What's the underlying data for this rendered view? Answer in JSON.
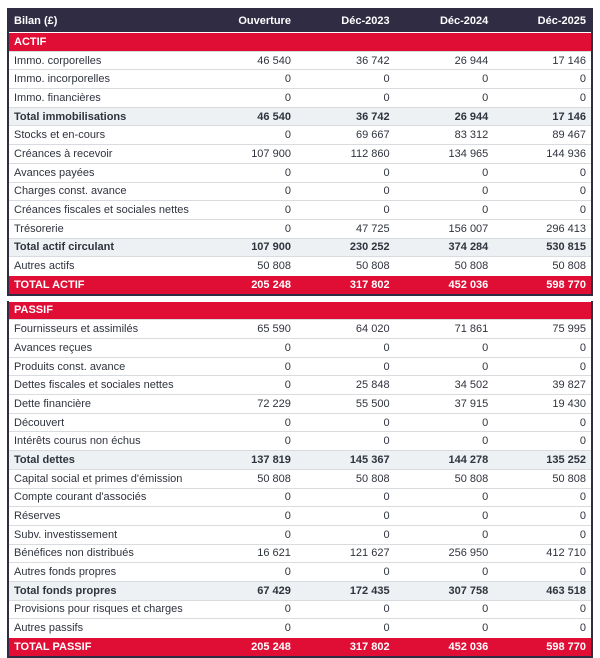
{
  "table": {
    "title": "Bilan (£)",
    "columns": [
      "Ouverture",
      "Déc-2023",
      "Déc-2024",
      "Déc-2025"
    ]
  },
  "colors": {
    "header_bg": "#2f2c44",
    "accent_red": "#e00d35",
    "subtotal_bg": "#edf1f3",
    "row_border": "#d8dcdf",
    "text": "#2f333d"
  },
  "actif": {
    "rows": [
      {
        "type": "section",
        "label": "ACTIF"
      },
      {
        "type": "data",
        "label": "Immo. corporelles",
        "values": [
          "46 540",
          "36 742",
          "26 944",
          "17 146"
        ]
      },
      {
        "type": "data",
        "label": "Immo. incorporelles",
        "values": [
          "0",
          "0",
          "0",
          "0"
        ]
      },
      {
        "type": "data",
        "label": "Immo. financières",
        "values": [
          "0",
          "0",
          "0",
          "0"
        ]
      },
      {
        "type": "subtotal",
        "label": "Total immobilisations",
        "values": [
          "46 540",
          "36 742",
          "26 944",
          "17 146"
        ]
      },
      {
        "type": "data",
        "label": "Stocks et en-cours",
        "values": [
          "0",
          "69 667",
          "83 312",
          "89 467"
        ]
      },
      {
        "type": "data",
        "label": "Créances à recevoir",
        "values": [
          "107 900",
          "112 860",
          "134 965",
          "144 936"
        ]
      },
      {
        "type": "data",
        "label": "Avances payées",
        "values": [
          "0",
          "0",
          "0",
          "0"
        ]
      },
      {
        "type": "data",
        "label": "Charges const. avance",
        "values": [
          "0",
          "0",
          "0",
          "0"
        ]
      },
      {
        "type": "data",
        "label": "Créances fiscales et sociales nettes",
        "values": [
          "0",
          "0",
          "0",
          "0"
        ]
      },
      {
        "type": "data",
        "label": "Trésorerie",
        "values": [
          "0",
          "47 725",
          "156 007",
          "296 413"
        ]
      },
      {
        "type": "subtotal",
        "label": "Total actif circulant",
        "values": [
          "107 900",
          "230 252",
          "374 284",
          "530 815"
        ]
      },
      {
        "type": "data",
        "label": "Autres actifs",
        "values": [
          "50 808",
          "50 808",
          "50 808",
          "50 808"
        ]
      },
      {
        "type": "grand",
        "label": "TOTAL ACTIF",
        "values": [
          "205 248",
          "317 802",
          "452 036",
          "598 770"
        ]
      }
    ]
  },
  "passif": {
    "rows": [
      {
        "type": "section",
        "label": "PASSIF"
      },
      {
        "type": "data",
        "label": "Fournisseurs et assimilés",
        "values": [
          "65 590",
          "64 020",
          "71 861",
          "75 995"
        ]
      },
      {
        "type": "data",
        "label": "Avances reçues",
        "values": [
          "0",
          "0",
          "0",
          "0"
        ]
      },
      {
        "type": "data",
        "label": "Produits const. avance",
        "values": [
          "0",
          "0",
          "0",
          "0"
        ]
      },
      {
        "type": "data",
        "label": "Dettes fiscales et sociales nettes",
        "values": [
          "0",
          "25 848",
          "34 502",
          "39 827"
        ]
      },
      {
        "type": "data",
        "label": "Dette financière",
        "values": [
          "72 229",
          "55 500",
          "37 915",
          "19 430"
        ]
      },
      {
        "type": "data",
        "label": "Découvert",
        "values": [
          "0",
          "0",
          "0",
          "0"
        ]
      },
      {
        "type": "data",
        "label": "Intérêts courus non échus",
        "values": [
          "0",
          "0",
          "0",
          "0"
        ]
      },
      {
        "type": "subtotal",
        "label": "Total dettes",
        "values": [
          "137 819",
          "145 367",
          "144 278",
          "135 252"
        ]
      },
      {
        "type": "data",
        "label": "Capital social et primes d'émission",
        "values": [
          "50 808",
          "50 808",
          "50 808",
          "50 808"
        ]
      },
      {
        "type": "data",
        "label": "Compte courant d'associés",
        "values": [
          "0",
          "0",
          "0",
          "0"
        ]
      },
      {
        "type": "data",
        "label": "Réserves",
        "values": [
          "0",
          "0",
          "0",
          "0"
        ]
      },
      {
        "type": "data",
        "label": "Subv. investissement",
        "values": [
          "0",
          "0",
          "0",
          "0"
        ]
      },
      {
        "type": "data",
        "label": "Bénéfices non distribués",
        "values": [
          "16 621",
          "121 627",
          "256 950",
          "412 710"
        ]
      },
      {
        "type": "data",
        "label": "Autres fonds propres",
        "values": [
          "0",
          "0",
          "0",
          "0"
        ]
      },
      {
        "type": "subtotal",
        "label": "Total fonds propres",
        "values": [
          "67 429",
          "172 435",
          "307 758",
          "463 518"
        ]
      },
      {
        "type": "data",
        "label": "Provisions pour risques et charges",
        "values": [
          "0",
          "0",
          "0",
          "0"
        ]
      },
      {
        "type": "data",
        "label": "Autres passifs",
        "values": [
          "0",
          "0",
          "0",
          "0"
        ]
      },
      {
        "type": "grand",
        "label": "TOTAL PASSIF",
        "values": [
          "205 248",
          "317 802",
          "452 036",
          "598 770"
        ]
      }
    ]
  }
}
